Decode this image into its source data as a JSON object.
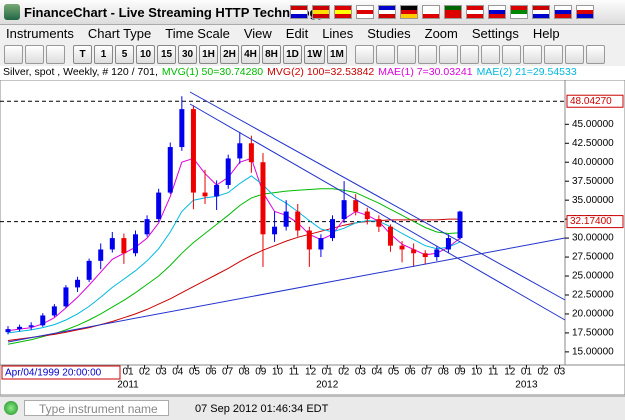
{
  "window": {
    "title": "FinanceChart - Live Streaming HTTP Technology"
  },
  "menu": [
    "Instruments",
    "Chart Type",
    "Time Scale",
    "View",
    "Edit",
    "Lines",
    "Studies",
    "Zoom",
    "Settings",
    "Help"
  ],
  "toolbar": [
    "T",
    "1",
    "5",
    "10",
    "15",
    "30",
    "1H",
    "2H",
    "4H",
    "8H",
    "1D",
    "1W",
    "1M"
  ],
  "symbol": "Silver, spot , Weekly, # 120 / 701,",
  "chart_data": {
    "type": "candlestick",
    "up_color": "#0000ee",
    "down_color": "#ee0000",
    "candles": [
      [
        17.6,
        18.4,
        17.3,
        18.0
      ],
      [
        18.0,
        18.6,
        17.7,
        18.3
      ],
      [
        18.3,
        18.9,
        17.9,
        18.5
      ],
      [
        18.5,
        20.1,
        18.3,
        19.8
      ],
      [
        19.8,
        21.3,
        19.6,
        21.0
      ],
      [
        21.0,
        23.8,
        20.8,
        23.5
      ],
      [
        23.5,
        24.9,
        22.9,
        24.5
      ],
      [
        24.5,
        27.3,
        24.2,
        27.0
      ],
      [
        27.0,
        29.3,
        25.9,
        28.5
      ],
      [
        28.5,
        30.8,
        28.1,
        30.0
      ],
      [
        30.0,
        30.6,
        26.6,
        28.0
      ],
      [
        28.0,
        31.0,
        27.6,
        30.5
      ],
      [
        30.5,
        33.0,
        30.2,
        32.5
      ],
      [
        32.5,
        36.5,
        32.1,
        36.0
      ],
      [
        36.0,
        42.6,
        35.8,
        42.0
      ],
      [
        42.0,
        48.7,
        41.5,
        47.0
      ],
      [
        47.0,
        47.5,
        33.8,
        36.0
      ],
      [
        36.0,
        39.0,
        34.5,
        35.5
      ],
      [
        35.5,
        37.6,
        33.7,
        37.0
      ],
      [
        37.0,
        41.0,
        36.5,
        40.5
      ],
      [
        40.5,
        44.0,
        39.8,
        42.5
      ],
      [
        42.5,
        43.5,
        38.6,
        40.0
      ],
      [
        40.0,
        41.2,
        26.2,
        30.5
      ],
      [
        30.5,
        33.5,
        29.5,
        31.5
      ],
      [
        31.5,
        35.0,
        31.0,
        33.5
      ],
      [
        33.5,
        34.5,
        30.2,
        31.0
      ],
      [
        31.0,
        31.5,
        26.2,
        28.5
      ],
      [
        28.5,
        30.5,
        27.5,
        30.0
      ],
      [
        30.0,
        33.0,
        29.6,
        32.5
      ],
      [
        32.5,
        37.5,
        32.0,
        35.0
      ],
      [
        35.0,
        35.8,
        33.0,
        33.5
      ],
      [
        33.5,
        34.0,
        31.8,
        32.5
      ],
      [
        32.5,
        33.0,
        30.8,
        31.5
      ],
      [
        31.5,
        31.8,
        28.2,
        29.0
      ],
      [
        29.0,
        29.6,
        26.8,
        28.5
      ],
      [
        28.5,
        29.3,
        26.2,
        28.0
      ],
      [
        28.0,
        28.4,
        26.5,
        27.5
      ],
      [
        27.5,
        29.0,
        27.0,
        28.5
      ],
      [
        28.5,
        30.5,
        28.0,
        30.0
      ],
      [
        30.0,
        33.6,
        29.8,
        33.5
      ]
    ],
    "series": [
      {
        "name": "MVG(1) 50=30.74280",
        "color": "#00bb00",
        "values": [
          16.0,
          16.3,
          16.6,
          17.0,
          17.4,
          17.9,
          18.5,
          19.2,
          20.0,
          20.9,
          21.8,
          22.8,
          23.9,
          25.0,
          26.4,
          28.0,
          29.4,
          30.6,
          31.8,
          33.0,
          34.3,
          35.3,
          35.8,
          36.0,
          36.2,
          36.3,
          36.4,
          36.5,
          36.5,
          36.3,
          36.0,
          35.3,
          34.6,
          33.8,
          33.0,
          32.2,
          31.4,
          30.8,
          30.6,
          30.7
        ]
      },
      {
        "name": "MVG(2) 100=32.53842",
        "color": "#cc0000",
        "values": [
          16.5,
          16.7,
          16.9,
          17.1,
          17.3,
          17.6,
          17.9,
          18.2,
          18.6,
          19.0,
          19.5,
          20.0,
          20.6,
          21.3,
          22.0,
          22.8,
          23.6,
          24.4,
          25.2,
          26.0,
          26.9,
          27.7,
          28.4,
          29.0,
          29.6,
          30.1,
          30.5,
          30.9,
          31.3,
          31.7,
          32.0,
          32.2,
          32.3,
          32.4,
          32.4,
          32.4,
          32.4,
          32.4,
          32.5,
          32.5
        ]
      },
      {
        "name": "MAE(1) 7=30.03241",
        "color": "#dd00dd",
        "values": [
          17.8,
          18.0,
          18.2,
          18.7,
          19.5,
          20.8,
          22.2,
          23.8,
          25.5,
          27.2,
          28.0,
          28.8,
          30.0,
          32.0,
          35.5,
          40.0,
          40.5,
          38.5,
          37.0,
          38.0,
          40.0,
          40.5,
          36.0,
          33.5,
          33.0,
          32.0,
          30.5,
          29.8,
          30.5,
          32.5,
          33.5,
          33.0,
          32.2,
          30.5,
          29.2,
          28.5,
          27.8,
          28.0,
          28.8,
          30.0
        ]
      },
      {
        "name": "MAE(2) 21=29.54533",
        "color": "#00b8e0",
        "values": [
          17.5,
          17.7,
          17.9,
          18.2,
          18.6,
          19.2,
          20.0,
          21.0,
          22.2,
          23.5,
          24.6,
          25.7,
          27.0,
          28.6,
          30.8,
          33.5,
          35.0,
          35.3,
          35.5,
          36.0,
          37.2,
          38.2,
          37.0,
          35.5,
          34.6,
          33.5,
          32.3,
          31.2,
          30.8,
          31.3,
          32.0,
          32.3,
          32.2,
          31.5,
          30.6,
          29.8,
          29.0,
          28.6,
          28.8,
          29.5
        ]
      }
    ],
    "ylim": [
      13.27,
      50.84
    ],
    "yticks": [
      {
        "value": 15,
        "label": "15.00000"
      },
      {
        "value": 17.5,
        "label": "17.50000"
      },
      {
        "value": 20,
        "label": "20.00000"
      },
      {
        "value": 22.5,
        "label": "22.50000"
      },
      {
        "value": 25,
        "label": "25.00000"
      },
      {
        "value": 27.5,
        "label": "27.50000"
      },
      {
        "value": 30,
        "label": "30.00000"
      },
      {
        "value": 32.5,
        "label": "32.50000"
      },
      {
        "value": 35,
        "label": "35.00000"
      },
      {
        "value": 37.5,
        "label": "37.50000"
      },
      {
        "value": 40,
        "label": "40.00000"
      },
      {
        "value": 42.5,
        "label": "42.50000"
      },
      {
        "value": 45,
        "label": "45.00000"
      }
    ],
    "price_lines": [
      {
        "value": 48.0427,
        "label": "48.04270",
        "color": "#cc0000"
      },
      {
        "value": 32.174,
        "label": "32.17400",
        "color": "#cc0000"
      }
    ],
    "xticks": [
      "01",
      "02",
      "03",
      "04",
      "05",
      "06",
      "07",
      "08",
      "09",
      "10",
      "11",
      "12",
      "01",
      "02",
      "03",
      "04",
      "05",
      "06",
      "07",
      "08",
      "09",
      "10",
      "11",
      "12",
      "01",
      "02",
      "03"
    ],
    "years": [
      "2011",
      "2012",
      "2013"
    ],
    "cursor_label": "Apr/04/1999 20:00:00"
  },
  "status": {
    "placeholder": "Type instrument name",
    "time": "07 Sep 2012 01:46:34 EDT"
  }
}
